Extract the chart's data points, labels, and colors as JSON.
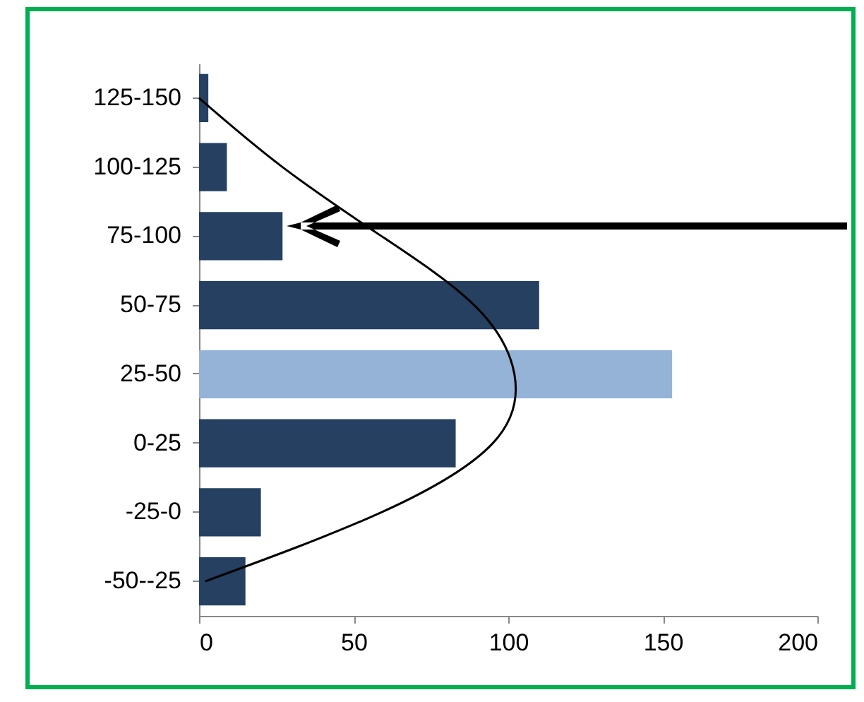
{
  "chart_data": {
    "type": "bar",
    "orientation": "horizontal",
    "categories": [
      "125-150",
      "100-125",
      "75-100",
      "50-75",
      "25-50",
      "0-25",
      "-25-0",
      "-50--25"
    ],
    "series": [
      {
        "colors": [
          "#254061",
          "#254061",
          "#254061",
          "#254061",
          "#95b3d7",
          "#254061",
          "#254061",
          "#254061"
        ],
        "values": [
          3,
          9,
          27,
          110,
          153,
          83,
          20,
          15
        ]
      },
      {
        "type": "line",
        "color": "#000000",
        "values": [
          0,
          27,
          59,
          89,
          102,
          95,
          59,
          2
        ]
      }
    ],
    "xlim": [
      0,
      200
    ],
    "xticks": [
      0,
      50,
      100,
      150,
      200
    ],
    "grid": false,
    "marker": "none",
    "line_style": "solid"
  }
}
